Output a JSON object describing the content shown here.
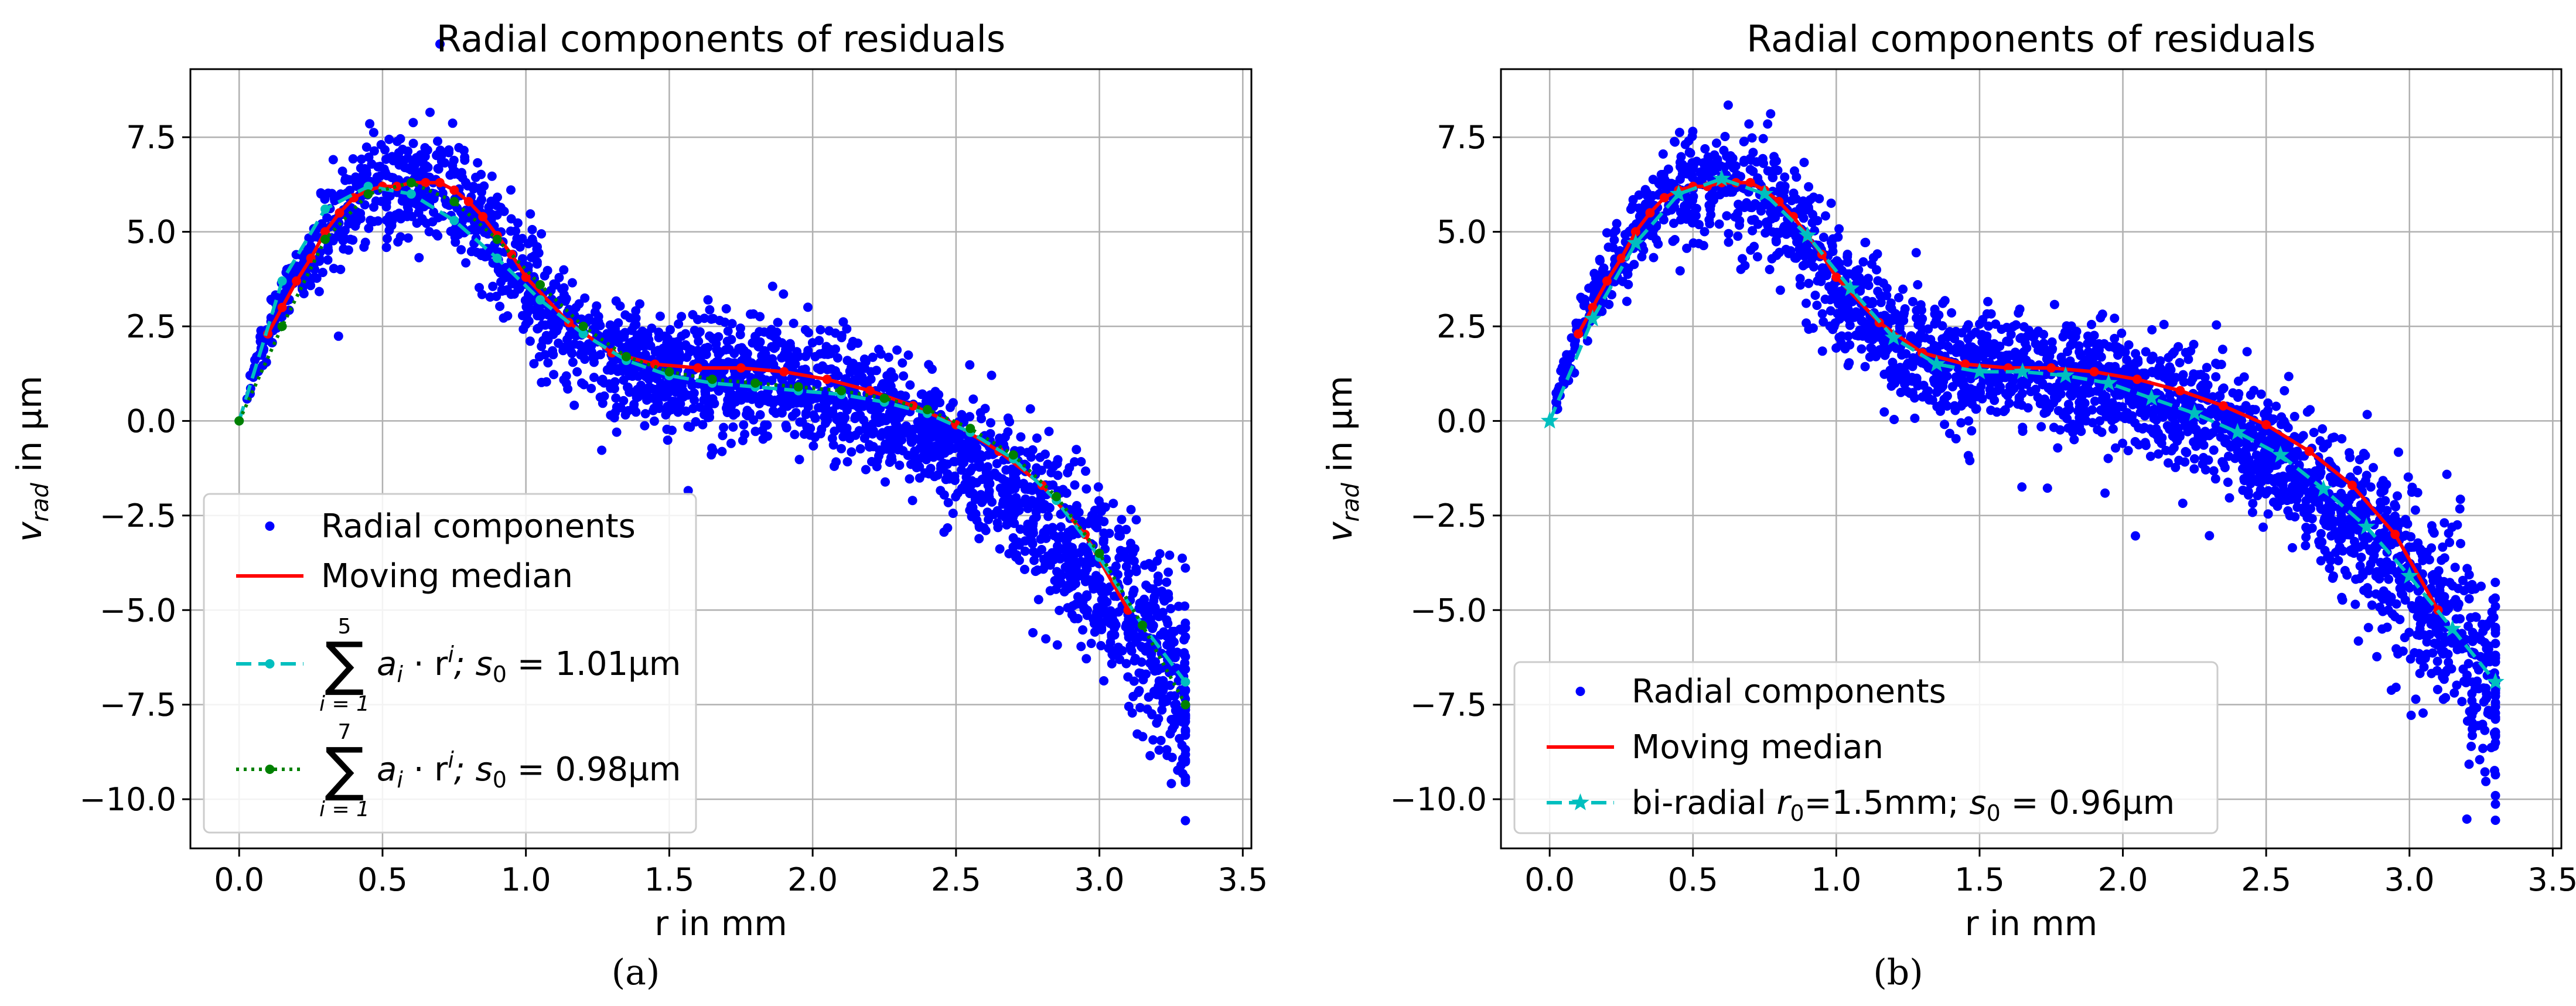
{
  "chart_data": [
    {
      "id": "a",
      "type": "scatter",
      "panel_label": "(a)",
      "title": "Radial components of residuals",
      "xlabel": "r in mm",
      "ylabel_main": "v",
      "ylabel_sub": "rad",
      "ylabel_unit": " in µm",
      "xlim": [
        -0.17,
        3.53
      ],
      "ylim": [
        -11.3,
        9.3
      ],
      "xticks": [
        0.0,
        0.5,
        1.0,
        1.5,
        2.0,
        2.5,
        3.0,
        3.5
      ],
      "xtick_labels": [
        "0.0",
        "0.5",
        "1.0",
        "1.5",
        "2.0",
        "2.5",
        "3.0",
        "3.5"
      ],
      "yticks": [
        -10.0,
        -7.5,
        -5.0,
        -2.5,
        0.0,
        2.5,
        5.0,
        7.5
      ],
      "ytick_labels": [
        "−10.0",
        "−7.5",
        "−5.0",
        "−2.5",
        "0.0",
        "2.5",
        "5.0",
        "7.5"
      ],
      "grid": true,
      "legend_position": "lower-left",
      "scatter": {
        "name": "Radial components",
        "color": "#0000ff",
        "approx_point_count": 2600,
        "center_curve": {
          "r": [
            0.0,
            0.1,
            0.2,
            0.3,
            0.4,
            0.5,
            0.6,
            0.7,
            0.8,
            0.9,
            1.0,
            1.1,
            1.2,
            1.3,
            1.4,
            1.5,
            1.6,
            1.7,
            1.8,
            1.9,
            2.0,
            2.1,
            2.2,
            2.3,
            2.4,
            2.5,
            2.6,
            2.7,
            2.8,
            2.9,
            3.0,
            3.1,
            3.2,
            3.3
          ],
          "v": [
            0.0,
            2.5,
            3.8,
            5.0,
            5.8,
            6.2,
            6.3,
            6.2,
            5.6,
            4.6,
            3.7,
            2.9,
            2.1,
            1.7,
            1.4,
            1.3,
            1.3,
            1.2,
            1.1,
            1.0,
            0.8,
            0.6,
            0.4,
            0.1,
            -0.3,
            -0.8,
            -1.4,
            -2.0,
            -2.7,
            -3.4,
            -4.2,
            -5.0,
            -6.0,
            -7.5
          ]
        },
        "spread": 0.75,
        "extra_spread_beyond_r": 2.5
      },
      "series": [
        {
          "name": "Moving median",
          "style": "solid",
          "color": "#ff0000",
          "marker": "dot",
          "x": [
            0.1,
            0.15,
            0.2,
            0.25,
            0.3,
            0.35,
            0.4,
            0.45,
            0.5,
            0.55,
            0.6,
            0.65,
            0.7,
            0.75,
            0.8,
            0.85,
            0.9,
            0.95,
            1.0,
            1.15,
            1.3,
            1.45,
            1.6,
            1.75,
            1.9,
            2.05,
            2.2,
            2.35,
            2.5,
            2.65,
            2.8,
            2.95,
            3.1
          ],
          "y": [
            2.3,
            3.0,
            3.7,
            4.3,
            5.0,
            5.5,
            5.9,
            6.1,
            6.2,
            6.2,
            6.3,
            6.3,
            6.3,
            6.1,
            5.8,
            5.4,
            4.9,
            4.4,
            3.8,
            2.6,
            1.8,
            1.5,
            1.4,
            1.4,
            1.3,
            1.1,
            0.8,
            0.4,
            -0.1,
            -0.8,
            -1.7,
            -3.0,
            -5.0
          ]
        },
        {
          "name": "5th order polynomial",
          "legend_pre": "∑",
          "legend_top": "5",
          "legend_bottom": "i = 1",
          "legend_expr": "a",
          "legend_sub": "i",
          "legend_mid": " · r",
          "legend_sup": "i",
          "legend_tail": "; s",
          "legend_sub0": "0",
          "legend_value": " = 1.01µm",
          "style": "dashed",
          "color": "#00bfbf",
          "marker": "dot",
          "x": [
            0.0,
            0.15,
            0.3,
            0.45,
            0.6,
            0.75,
            0.9,
            1.05,
            1.2,
            1.35,
            1.5,
            1.65,
            1.8,
            1.95,
            2.1,
            2.25,
            2.4,
            2.55,
            2.7,
            2.85,
            3.0,
            3.15,
            3.3
          ],
          "y": [
            0.0,
            3.7,
            5.6,
            6.2,
            6.0,
            5.3,
            4.3,
            3.2,
            2.3,
            1.6,
            1.2,
            1.0,
            0.9,
            0.8,
            0.7,
            0.5,
            0.2,
            -0.3,
            -1.0,
            -2.1,
            -3.6,
            -5.4,
            -6.9
          ]
        },
        {
          "name": "7th order polynomial",
          "legend_pre": "∑",
          "legend_top": "7",
          "legend_bottom": "i = 1",
          "legend_expr": "a",
          "legend_sub": "i",
          "legend_mid": " · r",
          "legend_sup": "i",
          "legend_tail": "; s",
          "legend_sub0": "0",
          "legend_value": " = 0.98µm",
          "style": "dotted",
          "color": "#008000",
          "marker": "dot",
          "x": [
            0.0,
            0.15,
            0.3,
            0.45,
            0.6,
            0.75,
            0.9,
            1.05,
            1.2,
            1.35,
            1.5,
            1.65,
            1.8,
            1.95,
            2.1,
            2.25,
            2.4,
            2.55,
            2.7,
            2.85,
            3.0,
            3.15,
            3.3
          ],
          "y": [
            0.0,
            2.5,
            4.8,
            6.0,
            6.3,
            5.8,
            4.8,
            3.6,
            2.5,
            1.7,
            1.3,
            1.1,
            1.0,
            0.9,
            0.8,
            0.6,
            0.3,
            -0.2,
            -0.9,
            -2.0,
            -3.5,
            -5.4,
            -7.5
          ]
        }
      ]
    },
    {
      "id": "b",
      "type": "scatter",
      "panel_label": "(b)",
      "title": "Radial components of residuals",
      "xlabel": "r in mm",
      "ylabel_main": "v",
      "ylabel_sub": "rad",
      "ylabel_unit": " in µm",
      "xlim": [
        -0.17,
        3.53
      ],
      "ylim": [
        -11.3,
        9.3
      ],
      "xticks": [
        0.0,
        0.5,
        1.0,
        1.5,
        2.0,
        2.5,
        3.0,
        3.5
      ],
      "xtick_labels": [
        "0.0",
        "0.5",
        "1.0",
        "1.5",
        "2.0",
        "2.5",
        "3.0",
        "3.5"
      ],
      "yticks": [
        -10.0,
        -7.5,
        -5.0,
        -2.5,
        0.0,
        2.5,
        5.0,
        7.5
      ],
      "ytick_labels": [
        "−10.0",
        "−7.5",
        "−5.0",
        "−2.5",
        "0.0",
        "2.5",
        "5.0",
        "7.5"
      ],
      "grid": true,
      "legend_position": "lower-left",
      "scatter": {
        "name": "Radial components",
        "color": "#0000ff",
        "approx_point_count": 2600,
        "center_curve": {
          "r": [
            0.0,
            0.1,
            0.2,
            0.3,
            0.4,
            0.5,
            0.6,
            0.7,
            0.8,
            0.9,
            1.0,
            1.1,
            1.2,
            1.3,
            1.4,
            1.5,
            1.6,
            1.7,
            1.8,
            1.9,
            2.0,
            2.1,
            2.2,
            2.3,
            2.4,
            2.5,
            2.6,
            2.7,
            2.8,
            2.9,
            3.0,
            3.1,
            3.2,
            3.3
          ],
          "v": [
            0.0,
            2.5,
            3.8,
            5.0,
            5.8,
            6.2,
            6.3,
            6.2,
            5.6,
            4.6,
            3.7,
            2.9,
            2.1,
            1.7,
            1.4,
            1.3,
            1.3,
            1.2,
            1.1,
            1.0,
            0.8,
            0.6,
            0.4,
            0.1,
            -0.3,
            -0.8,
            -1.4,
            -2.0,
            -2.7,
            -3.4,
            -4.2,
            -5.0,
            -6.0,
            -7.5
          ]
        },
        "spread": 0.75,
        "extra_spread_beyond_r": 2.5
      },
      "series": [
        {
          "name": "Moving median",
          "style": "solid",
          "color": "#ff0000",
          "marker": "dot",
          "x": [
            0.1,
            0.15,
            0.2,
            0.25,
            0.3,
            0.35,
            0.4,
            0.45,
            0.5,
            0.55,
            0.6,
            0.65,
            0.7,
            0.75,
            0.8,
            0.85,
            0.9,
            0.95,
            1.0,
            1.15,
            1.3,
            1.45,
            1.6,
            1.75,
            1.9,
            2.05,
            2.2,
            2.35,
            2.5,
            2.65,
            2.8,
            2.95,
            3.1
          ],
          "y": [
            2.3,
            3.0,
            3.7,
            4.3,
            5.0,
            5.5,
            5.9,
            6.1,
            6.2,
            6.2,
            6.3,
            6.3,
            6.3,
            6.1,
            5.8,
            5.4,
            4.9,
            4.4,
            3.8,
            2.6,
            1.8,
            1.5,
            1.4,
            1.4,
            1.3,
            1.1,
            0.8,
            0.4,
            -0.1,
            -0.8,
            -1.7,
            -3.0,
            -5.0
          ]
        },
        {
          "name": "bi-radial",
          "legend_text1": "bi-radial ",
          "legend_r": "r",
          "legend_r_sub": "0",
          "legend_text2": "=1.5mm; ",
          "legend_s": "s",
          "legend_s_sub": "0",
          "legend_value": " = 0.96µm",
          "style": "dashed",
          "color": "#00bfbf",
          "marker": "star",
          "x": [
            0.0,
            0.15,
            0.3,
            0.45,
            0.6,
            0.75,
            0.9,
            1.05,
            1.2,
            1.35,
            1.5,
            1.65,
            1.8,
            1.95,
            2.1,
            2.25,
            2.4,
            2.55,
            2.7,
            2.85,
            3.0,
            3.15,
            3.3
          ],
          "y": [
            0.0,
            2.7,
            4.7,
            6.0,
            6.4,
            6.0,
            4.9,
            3.5,
            2.2,
            1.5,
            1.3,
            1.3,
            1.2,
            1.0,
            0.6,
            0.2,
            -0.3,
            -0.9,
            -1.8,
            -2.8,
            -4.1,
            -5.5,
            -6.9
          ]
        }
      ]
    }
  ]
}
